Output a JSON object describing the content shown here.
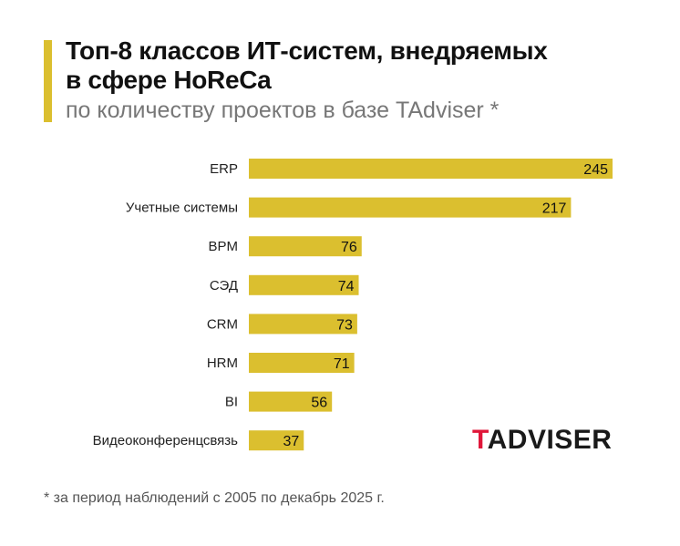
{
  "header": {
    "title_line1": "Топ-8 классов ИТ-систем, внедряемых",
    "title_line2": "в сфере HoReCa",
    "subtitle": "по количеству проектов в базе TAdviser *"
  },
  "logo": {
    "first": "T",
    "rest": "ADVISER"
  },
  "footnote": "* за период наблюдений с 2005 по декабрь 2025 г.",
  "colors": {
    "bar": "#dbbf2f",
    "accent": "#dbbf2f",
    "logo_red": "#e0173a"
  },
  "chart_data": {
    "type": "bar",
    "orientation": "horizontal",
    "title": "Топ-8 классов ИТ-систем, внедряемых в сфере HoReCa",
    "subtitle": "по количеству проектов в базе TAdviser *",
    "categories": [
      "ERP",
      "Учетные системы",
      "BPM",
      "СЭД",
      "CRM",
      "HRM",
      "BI",
      "Видеоконференцсвязь"
    ],
    "values": [
      245,
      217,
      76,
      74,
      73,
      71,
      56,
      37
    ],
    "xlim": [
      0,
      245
    ],
    "grid": false,
    "legend": "none"
  }
}
